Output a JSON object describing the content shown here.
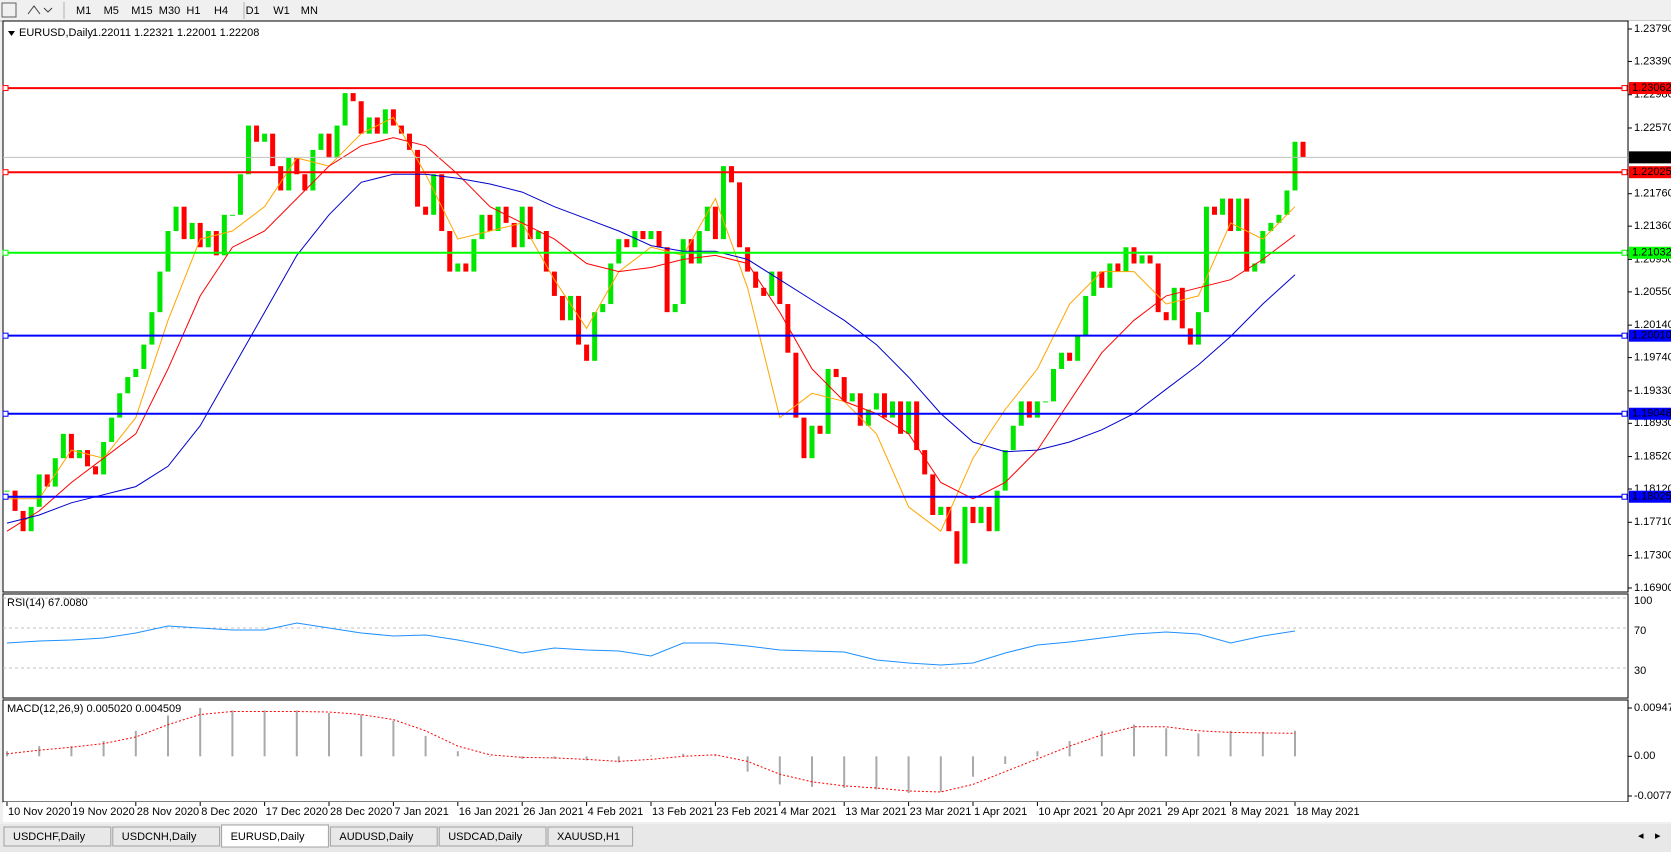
{
  "toolbar": {
    "timeframes": [
      "M1",
      "M5",
      "M15",
      "M30",
      "H1",
      "H4",
      "D1",
      "W1",
      "MN"
    ]
  },
  "chart_data": {
    "type": "candlestick",
    "title": "EURUSD,Daily",
    "subtitle": "1.22011 1.22321 1.22001 1.22208",
    "up_color": "#00e600",
    "down_color": "#ff0000",
    "closes": [
      1.181,
      1.1785,
      1.176,
      1.179,
      1.183,
      1.1815,
      1.185,
      1.188,
      1.185,
      1.186,
      1.184,
      1.183,
      1.187,
      1.19,
      1.193,
      1.195,
      1.196,
      1.199,
      1.203,
      1.208,
      1.213,
      1.216,
      1.212,
      1.214,
      1.211,
      1.213,
      1.21,
      1.215,
      1.215,
      1.22,
      1.226,
      1.224,
      1.225,
      1.221,
      1.218,
      1.222,
      1.22,
      1.218,
      1.223,
      1.225,
      1.222,
      1.226,
      1.23,
      1.229,
      1.225,
      1.227,
      1.225,
      1.228,
      1.226,
      1.225,
      1.223,
      1.216,
      1.215,
      1.22,
      1.213,
      1.208,
      1.209,
      1.208,
      1.212,
      1.215,
      1.213,
      1.216,
      1.214,
      1.211,
      1.216,
      1.212,
      1.213,
      1.208,
      1.205,
      1.202,
      1.205,
      1.199,
      1.197,
      1.203,
      1.204,
      1.209,
      1.212,
      1.211,
      1.213,
      1.212,
      1.213,
      1.211,
      1.203,
      1.204,
      1.212,
      1.209,
      1.213,
      1.216,
      1.212,
      1.221,
      1.219,
      1.211,
      1.208,
      1.206,
      1.205,
      1.208,
      1.204,
      1.198,
      1.19,
      1.185,
      1.189,
      1.188,
      1.196,
      1.195,
      1.192,
      1.193,
      1.189,
      1.191,
      1.193,
      1.19,
      1.192,
      1.188,
      1.192,
      1.186,
      1.183,
      1.178,
      1.179,
      1.176,
      1.172,
      1.179,
      1.177,
      1.179,
      1.176,
      1.181,
      1.186,
      1.189,
      1.192,
      1.19,
      1.192,
      1.192,
      1.196,
      1.198,
      1.197,
      1.2,
      1.205,
      1.208,
      1.206,
      1.209,
      1.208,
      1.211,
      1.209,
      1.21,
      1.209,
      1.203,
      1.202,
      1.206,
      1.201,
      1.199,
      1.203,
      1.216,
      1.215,
      1.217,
      1.213,
      1.217,
      1.208,
      1.209,
      1.213,
      1.214,
      1.215,
      1.218,
      1.224,
      1.22208
    ],
    "series": [
      {
        "color": "#ffa500",
        "values": [
          1.18,
          1.18,
          1.186,
          1.185,
          1.19,
          1.202,
          1.212,
          1.213,
          1.216,
          1.222,
          1.221,
          1.225,
          1.227,
          1.22,
          1.212,
          1.213,
          1.214,
          1.207,
          1.201,
          1.208,
          1.211,
          1.21,
          1.217,
          1.206,
          1.19,
          1.193,
          1.192,
          1.188,
          1.179,
          1.176,
          1.185,
          1.191,
          1.196,
          1.204,
          1.208,
          1.208,
          1.204,
          1.205,
          1.214,
          1.212,
          1.216
        ]
      },
      {
        "color": "#ff0000",
        "values": [
          1.176,
          1.1785,
          1.182,
          1.185,
          1.188,
          1.196,
          1.205,
          1.211,
          1.213,
          1.217,
          1.221,
          1.2235,
          1.2245,
          1.2235,
          1.22,
          1.216,
          1.214,
          1.212,
          1.209,
          1.208,
          1.2085,
          1.2095,
          1.21,
          1.209,
          1.203,
          1.196,
          1.192,
          1.1905,
          1.188,
          1.182,
          1.18,
          1.182,
          1.186,
          1.192,
          1.198,
          1.202,
          1.205,
          1.206,
          1.207,
          1.2095,
          1.2125
        ]
      },
      {
        "color": "#0000cd",
        "values": [
          1.177,
          1.178,
          1.1795,
          1.1805,
          1.1815,
          1.184,
          1.189,
          1.196,
          1.203,
          1.21,
          1.215,
          1.219,
          1.22,
          1.22,
          1.2195,
          1.2188,
          1.2178,
          1.216,
          1.2145,
          1.213,
          1.2112,
          1.2105,
          1.2105,
          1.2095,
          1.207,
          1.2045,
          1.202,
          1.199,
          1.195,
          1.1905,
          1.187,
          1.1858,
          1.186,
          1.187,
          1.1885,
          1.1905,
          1.1935,
          1.1965,
          1.2,
          1.204,
          1.2076
        ]
      }
    ],
    "ylim": [
      1.169,
      1.2379
    ],
    "yticks": [
      {
        "value": 1.2379,
        "label": "1.23790"
      },
      {
        "value": 1.2339,
        "label": "1.23390"
      },
      {
        "value": 1.2298,
        "label": "1.22980"
      },
      {
        "value": 1.2257,
        "label": "1.22570"
      },
      {
        "value": 1.2176,
        "label": "1.21760"
      },
      {
        "value": 1.2136,
        "label": "1.21360"
      },
      {
        "value": 1.2095,
        "label": "1.20950"
      },
      {
        "value": 1.2055,
        "label": "1.20550"
      },
      {
        "value": 1.2014,
        "label": "1.20140"
      },
      {
        "value": 1.1974,
        "label": "1.19740"
      },
      {
        "value": 1.1933,
        "label": "1.19330"
      },
      {
        "value": 1.1893,
        "label": "1.18930"
      },
      {
        "value": 1.1852,
        "label": "1.18520"
      },
      {
        "value": 1.1812,
        "label": "1.18120"
      },
      {
        "value": 1.1771,
        "label": "1.17710"
      },
      {
        "value": 1.173,
        "label": "1.17300"
      },
      {
        "value": 1.169,
        "label": "1.16900"
      }
    ],
    "levels": [
      {
        "value": 1.23062,
        "color": "#ff0000"
      },
      {
        "value": 1.22025,
        "color": "#ff0000"
      },
      {
        "value": 1.21032,
        "color": "#00ff00"
      },
      {
        "value": 1.2001,
        "label": "1.20010",
        "color": "#0000ff"
      },
      {
        "value": 1.19048,
        "color": "#0000ff"
      },
      {
        "value": 1.18025,
        "color": "#0000ff"
      }
    ],
    "current_price": 1.22208,
    "date_labels": [
      "10 Nov 2020",
      "19 Nov 2020",
      "28 Nov 2020",
      "8 Dec 2020",
      "17 Dec 2020",
      "28 Dec 2020",
      "7 Jan 2021",
      "16 Jan 2021",
      "26 Jan 2021",
      "4 Feb 2021",
      "13 Feb 2021",
      "23 Feb 2021",
      "4 Mar 2021",
      "13 Mar 2021",
      "23 Mar 2021",
      "1 Apr 2021",
      "10 Apr 2021",
      "20 Apr 2021",
      "29 Apr 2021",
      "8 May 2021",
      "18 May 2021"
    ],
    "rsi": {
      "title": "RSI(14) 67.0080",
      "color": "#1e90ff",
      "ylim": [
        0,
        100
      ],
      "yticks": [
        100,
        70,
        30
      ],
      "values": [
        55,
        57,
        58,
        60,
        65,
        72,
        70,
        68,
        68,
        75,
        70,
        65,
        62,
        63,
        58,
        52,
        45,
        50,
        48,
        47,
        42,
        55,
        55,
        52,
        48,
        47,
        46,
        38,
        35,
        33,
        35,
        45,
        53,
        56,
        60,
        64,
        66,
        64,
        55,
        62,
        67.008
      ]
    },
    "macd": {
      "title": "MACD(12,26,9) 0.005020 0.004509",
      "hist_color": "#a9a9a9",
      "signal_color": "#ff0000",
      "ylim": [
        -0.007778,
        0.009478
      ],
      "yticks": [
        0.009478,
        {
          "value": 0,
          "label": "0.00"
        },
        -0.007778
      ],
      "hist": [
        0.001,
        0.002,
        0.002,
        0.003,
        0.005,
        0.008,
        0.0095,
        0.009,
        0.009,
        0.009,
        0.0085,
        0.0082,
        0.007,
        0.004,
        0.001,
        0,
        -0.0005,
        -0.0005,
        -0.0008,
        -0.0012,
        0.0002,
        0.0005,
        0.0002,
        -0.003,
        -0.0055,
        -0.006,
        -0.0062,
        -0.0065,
        -0.0072,
        -0.007,
        -0.004,
        -0.0015,
        0.001,
        0.003,
        0.005,
        0.0062,
        0.0055,
        0.0045,
        0.005,
        0.0048,
        0.00502
      ],
      "signal": [
        0.0005,
        0.0012,
        0.0018,
        0.0025,
        0.0038,
        0.0062,
        0.0082,
        0.0088,
        0.0088,
        0.0088,
        0.0087,
        0.0082,
        0.0072,
        0.005,
        0.002,
        0.0003,
        -0.0002,
        -0.0003,
        -0.0006,
        -0.001,
        -0.0006,
        0,
        0.0003,
        -0.001,
        -0.0035,
        -0.005,
        -0.0058,
        -0.0062,
        -0.0068,
        -0.007,
        -0.0055,
        -0.003,
        -0.0005,
        0.002,
        0.0042,
        0.0058,
        0.0058,
        0.005,
        0.0047,
        0.0046,
        0.004509
      ]
    }
  },
  "tabs": {
    "items": [
      "USDCHF,Daily",
      "USDCNH,Daily",
      "EURUSD,Daily",
      "AUDUSD,Daily",
      "USDCAD,Daily",
      "XAUUSD,H1"
    ],
    "active": "EURUSD,Daily"
  }
}
